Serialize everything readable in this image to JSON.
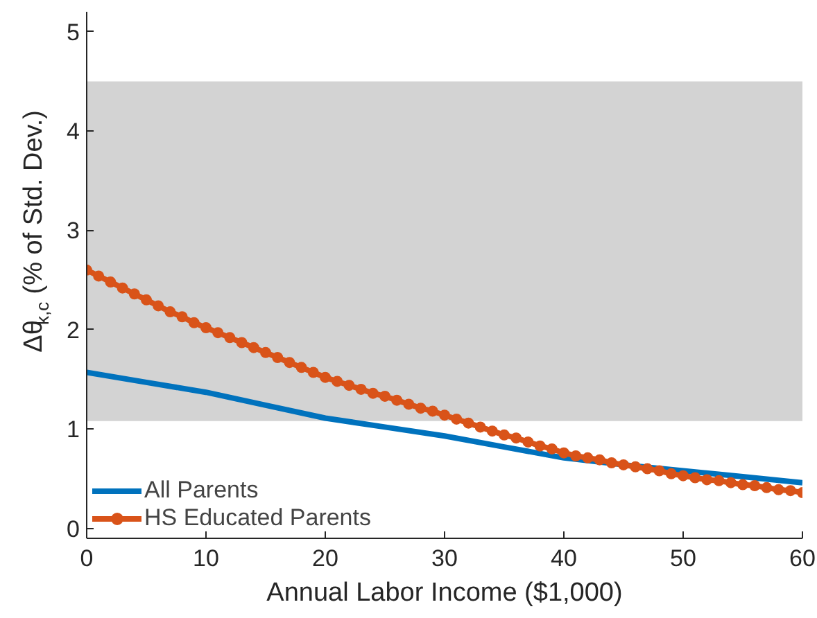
{
  "chart_data": {
    "type": "line",
    "xlabel": "Annual Labor Income ($1,000)",
    "ylabel": "Δθ$_{k,c}$ (% of Std. Dev.)",
    "xlim": [
      0,
      60
    ],
    "ylim": [
      -0.1,
      5.2
    ],
    "xticks": [
      0,
      10,
      20,
      30,
      40,
      50,
      60
    ],
    "yticks": [
      0,
      1,
      2,
      3,
      4,
      5
    ],
    "bands": [
      {
        "axis": "y",
        "from": 1.08,
        "to": 4.5,
        "color": "#d3d3d3"
      }
    ],
    "legend": "bottom left",
    "grid": false,
    "series": [
      {
        "name": "All Parents",
        "color": "#0072bd",
        "marker": "none",
        "x": [
          0,
          5,
          10,
          15,
          20,
          25,
          30,
          35,
          40,
          45,
          50,
          55,
          60
        ],
        "values": [
          1.57,
          1.47,
          1.37,
          1.24,
          1.11,
          1.02,
          0.93,
          0.82,
          0.71,
          0.64,
          0.58,
          0.52,
          0.46
        ]
      },
      {
        "name": "HS Educated Parents",
        "color": "#d95319",
        "marker": "circle",
        "x": [
          0,
          1,
          2,
          3,
          4,
          5,
          6,
          7,
          8,
          9,
          10,
          11,
          12,
          13,
          14,
          15,
          16,
          17,
          18,
          19,
          20,
          21,
          22,
          23,
          24,
          25,
          26,
          27,
          28,
          29,
          30,
          31,
          32,
          33,
          34,
          35,
          36,
          37,
          38,
          39,
          40,
          41,
          42,
          43,
          44,
          45,
          46,
          47,
          48,
          49,
          50,
          51,
          52,
          53,
          54,
          55,
          56,
          57,
          58,
          59,
          60
        ],
        "values": [
          2.6,
          2.54,
          2.48,
          2.42,
          2.36,
          2.3,
          2.24,
          2.18,
          2.13,
          2.07,
          2.02,
          1.97,
          1.92,
          1.87,
          1.82,
          1.77,
          1.72,
          1.67,
          1.62,
          1.57,
          1.52,
          1.48,
          1.44,
          1.4,
          1.36,
          1.33,
          1.29,
          1.25,
          1.21,
          1.18,
          1.14,
          1.1,
          1.06,
          1.02,
          0.98,
          0.94,
          0.91,
          0.87,
          0.83,
          0.8,
          0.76,
          0.73,
          0.71,
          0.69,
          0.66,
          0.64,
          0.62,
          0.6,
          0.58,
          0.55,
          0.53,
          0.51,
          0.49,
          0.48,
          0.46,
          0.44,
          0.43,
          0.41,
          0.39,
          0.38,
          0.36
        ]
      }
    ]
  }
}
